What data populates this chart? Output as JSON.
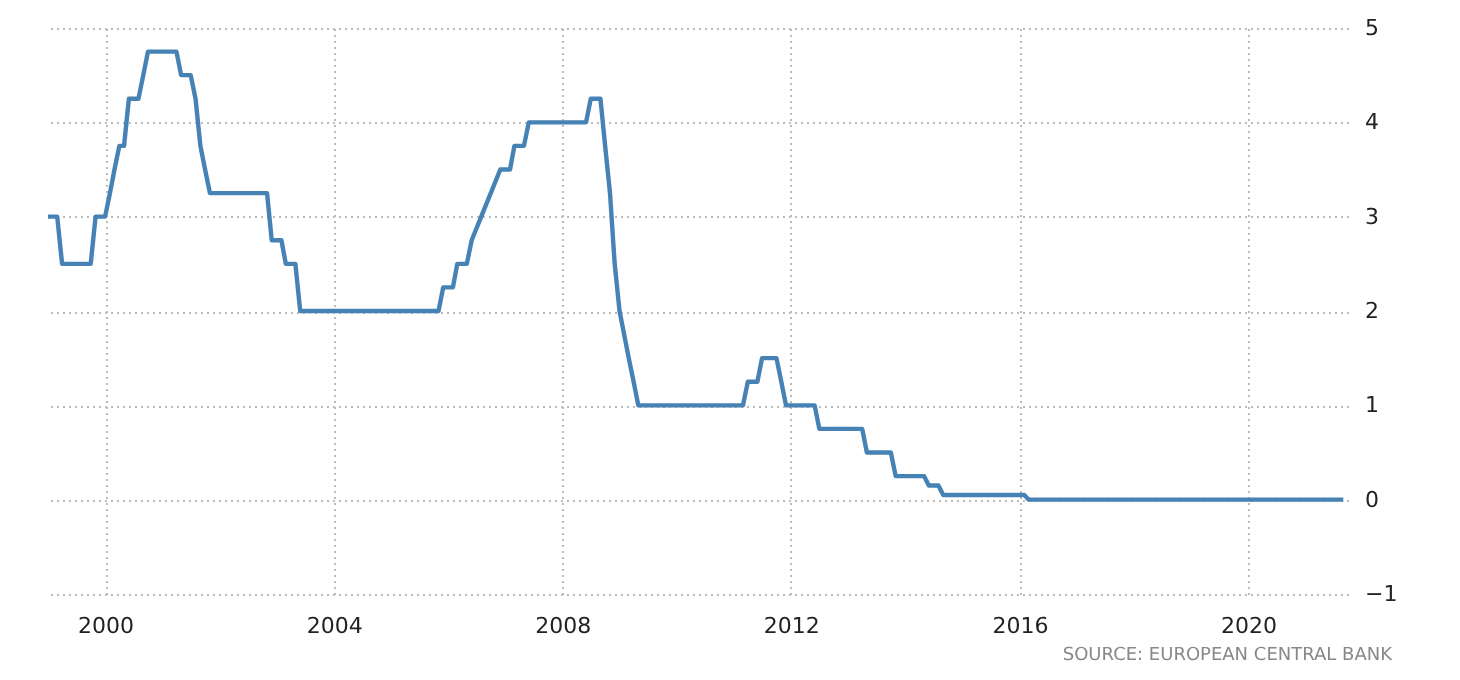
{
  "chart_data": {
    "type": "line",
    "x": [
      "1999-01",
      "1999-03",
      "1999-04",
      "1999-10",
      "1999-11",
      "2000-01",
      "2000-02",
      "2000-03",
      "2000-04",
      "2000-05",
      "2000-06",
      "2000-08",
      "2000-09",
      "2000-10",
      "2001-04",
      "2001-05",
      "2001-07",
      "2001-08",
      "2001-09",
      "2001-10",
      "2001-11",
      "2002-11",
      "2002-12",
      "2003-02",
      "2003-03",
      "2003-05",
      "2003-06",
      "2005-11",
      "2005-12",
      "2006-02",
      "2006-03",
      "2006-05",
      "2006-06",
      "2006-08",
      "2006-10",
      "2006-12",
      "2007-02",
      "2007-03",
      "2007-05",
      "2007-06",
      "2008-06",
      "2008-07",
      "2008-09",
      "2008-10",
      "2008-11",
      "2008-12",
      "2009-01",
      "2009-03",
      "2009-04",
      "2009-05",
      "2011-03",
      "2011-04",
      "2011-06",
      "2011-07",
      "2011-10",
      "2011-11",
      "2011-12",
      "2012-06",
      "2012-07",
      "2013-04",
      "2013-05",
      "2013-10",
      "2013-11",
      "2014-05",
      "2014-06",
      "2014-08",
      "2014-09",
      "2016-02",
      "2016-03",
      "2021-09"
    ],
    "series": [
      {
        "color": "#4682b4",
        "values": [
          3.0,
          3.0,
          2.5,
          2.5,
          3.0,
          3.0,
          3.25,
          3.5,
          3.75,
          3.75,
          4.25,
          4.25,
          4.5,
          4.75,
          4.75,
          4.5,
          4.5,
          4.25,
          3.75,
          3.5,
          3.25,
          3.25,
          2.75,
          2.75,
          2.5,
          2.5,
          2.0,
          2.0,
          2.25,
          2.25,
          2.5,
          2.5,
          2.75,
          3.0,
          3.25,
          3.5,
          3.5,
          3.75,
          3.75,
          4.0,
          4.0,
          4.25,
          4.25,
          3.75,
          3.25,
          2.5,
          2.0,
          1.5,
          1.25,
          1.0,
          1.0,
          1.25,
          1.25,
          1.5,
          1.5,
          1.25,
          1.0,
          1.0,
          0.75,
          0.75,
          0.5,
          0.5,
          0.25,
          0.25,
          0.15,
          0.15,
          0.05,
          0.05,
          0.0,
          0.0
        ]
      }
    ],
    "xlim": [
      "1999-01-01",
      "2021-10-01"
    ],
    "xticks": [
      "2000",
      "2004",
      "2008",
      "2012",
      "2016",
      "2020"
    ],
    "ylim": [
      -1,
      5
    ],
    "yticks": [
      -1,
      0,
      1,
      2,
      3,
      4,
      5
    ],
    "grid": true,
    "line_style": "solid",
    "marker": "none",
    "annotations": [
      "SOURCE: EUROPEAN CENTRAL BANK"
    ]
  }
}
